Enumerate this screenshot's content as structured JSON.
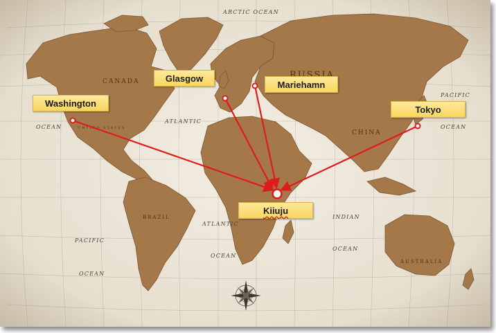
{
  "map": {
    "ocean_labels": {
      "arctic": "ARCTIC OCEAN",
      "pacific_east_top": "PACIFIC",
      "pacific_east_bottom": "OCEAN",
      "atlantic_north": "ATLANTIC",
      "ocean_west": "OCEAN",
      "pacific_south": "PACIFIC",
      "ocean_south_pacific": "OCEAN",
      "atlantic_south": "ATLANTIC",
      "ocean_south_atlantic": "OCEAN",
      "indian": "INDIAN",
      "ocean_indian": "OCEAN"
    },
    "land_labels": {
      "russia": "RUSSIA",
      "canada": "CANADA",
      "china": "CHINA",
      "brazil": "BRAZIL",
      "australia": "AUSTRALIA",
      "united_states": "UNITED STATES"
    },
    "cities": [
      {
        "id": "washington",
        "label": "Washington"
      },
      {
        "id": "glasgow",
        "label": "Glasgow"
      },
      {
        "id": "mariehamn",
        "label": "Mariehamn"
      },
      {
        "id": "tokyo",
        "label": "Tokyo"
      }
    ],
    "hub": {
      "id": "kiiuju",
      "label": "Kiiuju"
    },
    "colors": {
      "land": "#a5784a",
      "land_edge": "#7c5530",
      "background": "#ece6da",
      "route": "#e01b1b",
      "label_fill": "#fbe07e"
    }
  }
}
